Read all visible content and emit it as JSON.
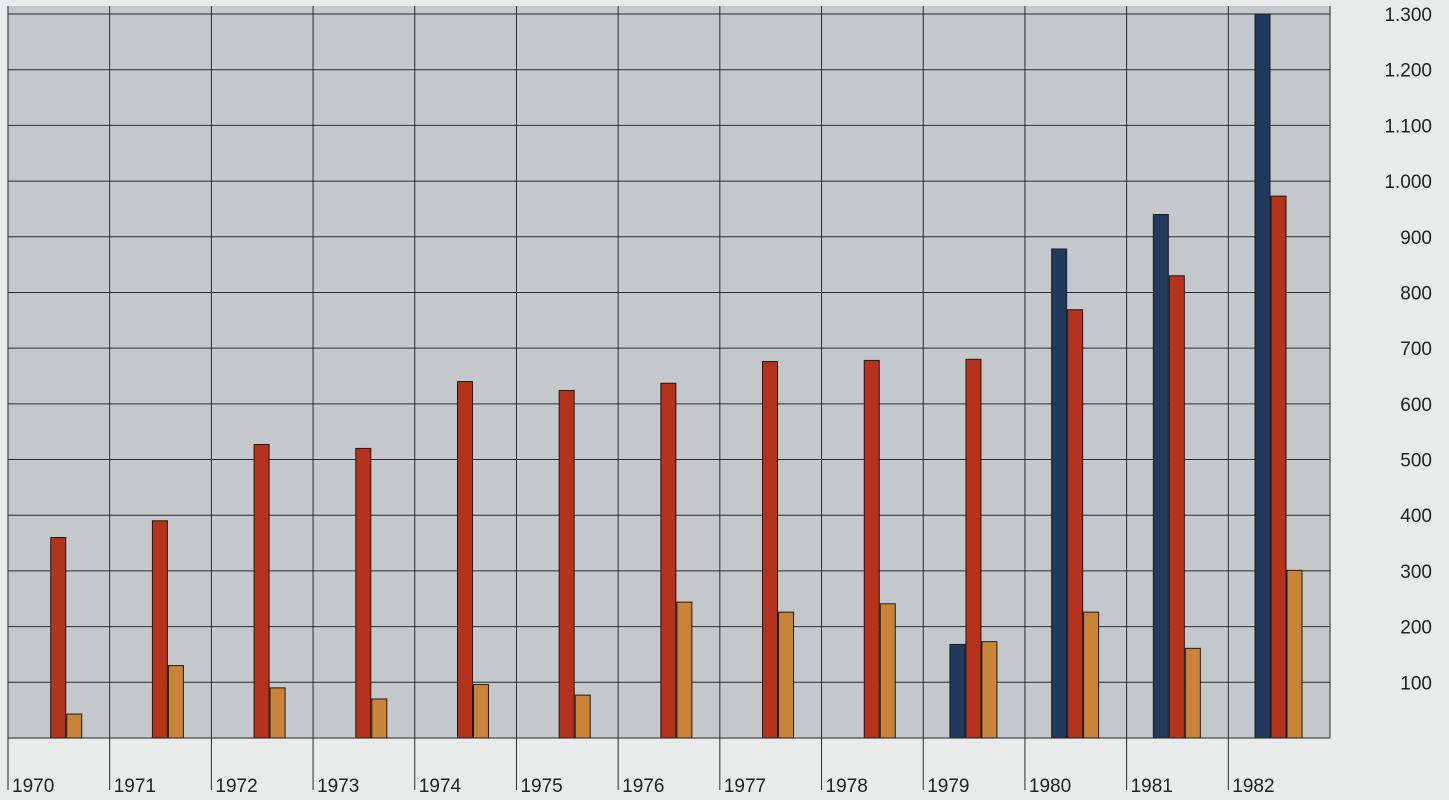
{
  "chart_data": {
    "type": "bar",
    "title": "",
    "xlabel": "",
    "ylabel": "",
    "categories": [
      "1970",
      "1971",
      "1972",
      "1973",
      "1974",
      "1975",
      "1976",
      "1977",
      "1978",
      "1979",
      "1980",
      "1981",
      "1982"
    ],
    "series": [
      {
        "color": "#223a5e",
        "values": [
          null,
          null,
          null,
          null,
          null,
          null,
          null,
          null,
          null,
          168,
          878,
          940,
          1300
        ]
      },
      {
        "color": "#b5321c",
        "values": [
          360,
          390,
          527,
          520,
          640,
          624,
          637,
          676,
          678,
          680,
          769,
          830,
          973
        ]
      },
      {
        "color": "#c9843a",
        "values": [
          43,
          130,
          90,
          70,
          96,
          77,
          244,
          226,
          241,
          173,
          226,
          161,
          301
        ]
      }
    ],
    "y_ticks": [
      "100",
      "200",
      "300",
      "400",
      "500",
      "600",
      "700",
      "800",
      "900",
      "1.000",
      "1.100",
      "1.200",
      "1.300"
    ],
    "ylim": [
      0,
      1300
    ],
    "grid": true,
    "legend": "none",
    "colors": {
      "plot_background": "#c4c8ca",
      "grid": "#2a2a2a",
      "page_background": "#e9eaea"
    }
  }
}
